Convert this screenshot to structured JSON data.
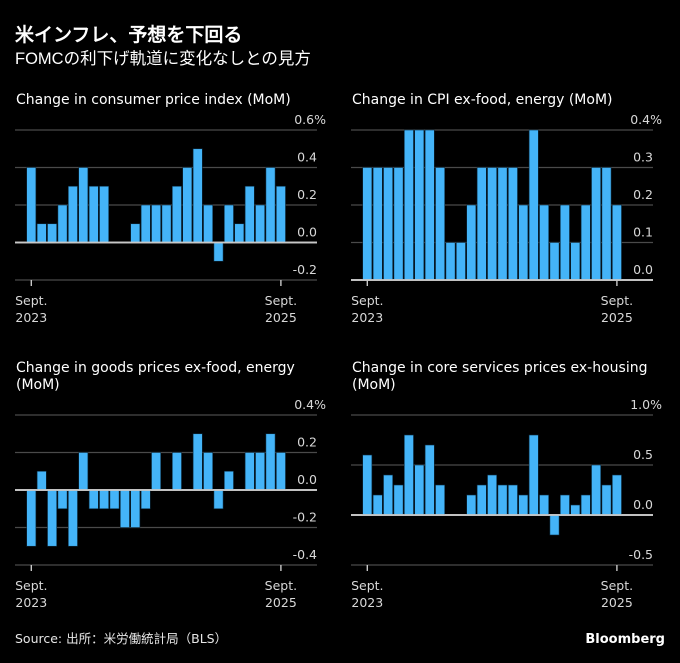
{
  "header": {
    "title": "米インフレ、予想を下回る",
    "subtitle": "FOMCの利下げ軌道に変化なしとの見方"
  },
  "footer": {
    "source": "Source: 出所：米労働統計局（BLS）",
    "brand": "Bloomberg"
  },
  "colors": {
    "bar": "#44b4f8",
    "background": "#000000"
  },
  "chart_data": [
    {
      "type": "bar",
      "title_lines": [
        "Change in consumer price index (MoM)"
      ],
      "ylabel": "",
      "xlabel": "",
      "unit": "%",
      "ylim": [
        -0.2,
        0.6
      ],
      "yticks": [
        0.6,
        0.4,
        0.2,
        0.0,
        -0.2
      ],
      "ytick_labels": [
        "0.6%",
        "0.4",
        "0.2",
        "0.0",
        "-0.2"
      ],
      "x_tick_labels": [
        [
          "Sept.",
          "2023"
        ],
        [
          "Sept.",
          "2025"
        ]
      ],
      "x_tick_index": [
        0,
        24
      ],
      "grid": true,
      "values": [
        0.4,
        0.1,
        0.1,
        0.2,
        0.3,
        0.4,
        0.3,
        0.3,
        0.0,
        0.0,
        0.1,
        0.2,
        0.2,
        0.2,
        0.3,
        0.4,
        0.5,
        0.2,
        -0.1,
        0.2,
        0.1,
        0.3,
        0.2,
        0.4,
        0.3
      ]
    },
    {
      "type": "bar",
      "title_lines": [
        "Change in CPI ex-food, energy (MoM)"
      ],
      "ylabel": "",
      "xlabel": "",
      "unit": "%",
      "ylim": [
        0.0,
        0.4
      ],
      "yticks": [
        0.4,
        0.3,
        0.2,
        0.1,
        0.0
      ],
      "ytick_labels": [
        "0.4%",
        "0.3",
        "0.2",
        "0.1",
        "0.0"
      ],
      "x_tick_labels": [
        [
          "Sept.",
          "2023"
        ],
        [
          "Sept.",
          "2025"
        ]
      ],
      "x_tick_index": [
        0,
        24
      ],
      "grid": true,
      "values": [
        0.3,
        0.3,
        0.3,
        0.3,
        0.4,
        0.4,
        0.4,
        0.3,
        0.1,
        0.1,
        0.2,
        0.3,
        0.3,
        0.3,
        0.3,
        0.2,
        0.4,
        0.2,
        0.1,
        0.2,
        0.1,
        0.2,
        0.3,
        0.3,
        0.2
      ]
    },
    {
      "type": "bar",
      "title_lines": [
        "Change in goods prices ex-food, energy",
        "(MoM)"
      ],
      "ylabel": "",
      "xlabel": "",
      "unit": "%",
      "ylim": [
        -0.4,
        0.4
      ],
      "yticks": [
        0.4,
        0.2,
        0.0,
        -0.2,
        -0.4
      ],
      "ytick_labels": [
        "0.4%",
        "0.2",
        "0.0",
        "-0.2",
        "-0.4"
      ],
      "x_tick_labels": [
        [
          "Sept.",
          "2023"
        ],
        [
          "Sept.",
          "2025"
        ]
      ],
      "x_tick_index": [
        0,
        24
      ],
      "grid": true,
      "values": [
        -0.3,
        0.1,
        -0.3,
        -0.1,
        -0.3,
        0.2,
        -0.1,
        -0.1,
        -0.1,
        -0.2,
        -0.2,
        -0.1,
        0.2,
        0.0,
        0.2,
        0.0,
        0.3,
        0.2,
        -0.1,
        0.1,
        0.0,
        0.2,
        0.2,
        0.3,
        0.2
      ]
    },
    {
      "type": "bar",
      "title_lines": [
        "Change in core services prices ex-housing",
        "(MoM)"
      ],
      "ylabel": "",
      "xlabel": "",
      "unit": "%",
      "ylim": [
        -0.5,
        1.0
      ],
      "yticks": [
        1.0,
        0.5,
        0.0,
        -0.5
      ],
      "ytick_labels": [
        "1.0%",
        "0.5",
        "0.0",
        "-0.5"
      ],
      "x_tick_labels": [
        [
          "Sept.",
          "2023"
        ],
        [
          "Sept.",
          "2025"
        ]
      ],
      "x_tick_index": [
        0,
        24
      ],
      "grid": true,
      "values": [
        0.6,
        0.2,
        0.4,
        0.3,
        0.8,
        0.5,
        0.7,
        0.3,
        0.0,
        0.0,
        0.2,
        0.3,
        0.4,
        0.3,
        0.3,
        0.2,
        0.8,
        0.2,
        -0.2,
        0.2,
        0.1,
        0.2,
        0.5,
        0.3,
        0.4
      ]
    }
  ]
}
